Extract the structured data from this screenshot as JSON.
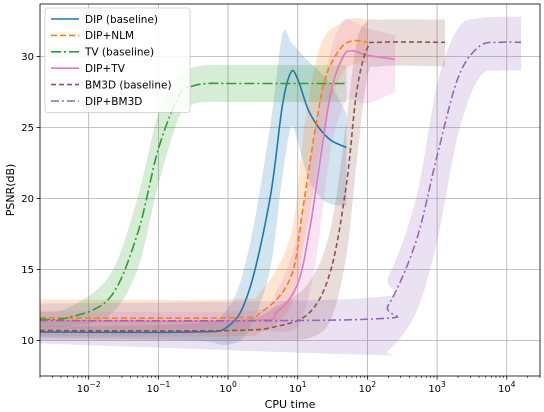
{
  "chart_data": {
    "type": "line",
    "xlabel": "CPU time",
    "ylabel": "PSNR(dB)",
    "xscale": "log",
    "xlim": [
      0.002,
      30000
    ],
    "ylim": [
      7.5,
      33.7
    ],
    "x_ticks": [
      {
        "value": 0.01,
        "base": "10",
        "exp": "−2"
      },
      {
        "value": 0.1,
        "base": "10",
        "exp": "−1"
      },
      {
        "value": 1,
        "base": "10",
        "exp": "0"
      },
      {
        "value": 10,
        "base": "10",
        "exp": "1"
      },
      {
        "value": 100,
        "base": "10",
        "exp": "2"
      },
      {
        "value": 1000,
        "base": "10",
        "exp": "3"
      },
      {
        "value": 10000,
        "base": "10",
        "exp": "4"
      }
    ],
    "y_ticks": [
      10,
      15,
      20,
      25,
      30
    ],
    "grid": true,
    "legend_position": "top-left",
    "series": [
      {
        "name": "DIP (baseline)",
        "color": "#1f77b4",
        "dash": "solid",
        "points": [
          [
            0.002,
            10.6
          ],
          [
            0.3,
            10.6
          ],
          [
            1,
            11.0
          ],
          [
            2,
            13.5
          ],
          [
            4,
            20.0
          ],
          [
            6,
            26.5
          ],
          [
            8,
            28.9
          ],
          [
            10,
            28.4
          ],
          [
            14,
            26.3
          ],
          [
            20,
            25.0
          ],
          [
            30,
            24.1
          ],
          [
            50,
            23.6
          ]
        ],
        "band": [
          [
            0.002,
            10.2,
            11.0
          ],
          [
            0.3,
            10.0,
            11.2
          ],
          [
            1,
            9.7,
            12.3
          ],
          [
            2,
            10.8,
            16.5
          ],
          [
            4,
            15.0,
            25.0
          ],
          [
            6,
            21.5,
            31.5
          ],
          [
            8,
            25.0,
            31.0
          ],
          [
            10,
            24.0,
            30.5
          ],
          [
            14,
            21.5,
            29.7
          ],
          [
            20,
            20.2,
            29.0
          ],
          [
            30,
            19.6,
            28.0
          ],
          [
            50,
            19.5,
            26.0
          ]
        ]
      },
      {
        "name": "DIP+NLM",
        "color": "#ff7f0e",
        "dash": "6,3",
        "points": [
          [
            0.002,
            11.6
          ],
          [
            1,
            11.6
          ],
          [
            3,
            12.0
          ],
          [
            8,
            14.5
          ],
          [
            12,
            19.5
          ],
          [
            18,
            25.0
          ],
          [
            25,
            28.5
          ],
          [
            40,
            30.5
          ],
          [
            60,
            31.1
          ],
          [
            100,
            31.0
          ]
        ],
        "band": [
          [
            0.002,
            10.3,
            12.9
          ],
          [
            1,
            10.3,
            12.9
          ],
          [
            3,
            10.6,
            13.5
          ],
          [
            8,
            12.4,
            17.5
          ],
          [
            12,
            16.5,
            24.5
          ],
          [
            18,
            21.5,
            29.5
          ],
          [
            25,
            25.5,
            31.5
          ],
          [
            40,
            28.5,
            32.3
          ],
          [
            60,
            29.4,
            32.7
          ],
          [
            100,
            29.6,
            32.6
          ]
        ]
      },
      {
        "name": "TV (baseline)",
        "color": "#2ca02c",
        "dash": "10,3,2,3",
        "points": [
          [
            0.002,
            11.5
          ],
          [
            0.005,
            11.6
          ],
          [
            0.02,
            13.0
          ],
          [
            0.05,
            17.5
          ],
          [
            0.1,
            23.5
          ],
          [
            0.2,
            27.3
          ],
          [
            0.3,
            27.9
          ],
          [
            0.5,
            28.1
          ],
          [
            1,
            28.1
          ],
          [
            10,
            28.1
          ],
          [
            50,
            28.1
          ]
        ],
        "band": [
          [
            0.002,
            11.0,
            12.0
          ],
          [
            0.005,
            11.0,
            12.3
          ],
          [
            0.02,
            11.8,
            14.6
          ],
          [
            0.05,
            15.0,
            20.0
          ],
          [
            0.1,
            21.0,
            26.0
          ],
          [
            0.2,
            25.8,
            28.8
          ],
          [
            0.3,
            26.6,
            29.2
          ],
          [
            0.5,
            26.8,
            29.4
          ],
          [
            1,
            26.8,
            29.4
          ],
          [
            10,
            26.8,
            29.4
          ],
          [
            50,
            26.8,
            29.4
          ]
        ]
      },
      {
        "name": "DIP+TV",
        "color": "#e377c2",
        "dash": "solid",
        "points": [
          [
            0.002,
            11.4
          ],
          [
            2,
            11.4
          ],
          [
            5,
            12.0
          ],
          [
            10,
            14.0
          ],
          [
            15,
            18.0
          ],
          [
            20,
            22.0
          ],
          [
            30,
            27.5
          ],
          [
            45,
            30.0
          ],
          [
            60,
            30.4
          ],
          [
            100,
            30.1
          ],
          [
            250,
            29.8
          ]
        ],
        "band": [
          [
            0.002,
            10.7,
            12.1
          ],
          [
            2,
            10.7,
            12.1
          ],
          [
            5,
            10.6,
            13.5
          ],
          [
            10,
            11.0,
            17.5
          ],
          [
            15,
            13.5,
            22.5
          ],
          [
            20,
            17.0,
            26.5
          ],
          [
            30,
            23.5,
            30.5
          ],
          [
            45,
            26.5,
            32.5
          ],
          [
            60,
            27.0,
            32.5
          ],
          [
            100,
            26.7,
            32.0
          ],
          [
            250,
            27.5,
            31.5
          ]
        ]
      },
      {
        "name": "BM3D (baseline)",
        "color": "#8c564b",
        "dash": "5,3",
        "points": [
          [
            0.002,
            10.7
          ],
          [
            1,
            10.7
          ],
          [
            5,
            11.0
          ],
          [
            15,
            12.0
          ],
          [
            30,
            15.0
          ],
          [
            50,
            21.0
          ],
          [
            70,
            27.5
          ],
          [
            100,
            30.6
          ],
          [
            150,
            31.0
          ],
          [
            1300,
            31.0
          ]
        ],
        "band": [
          [
            0.002,
            10.0,
            11.4
          ],
          [
            1,
            10.0,
            11.4
          ],
          [
            5,
            10.0,
            12.4
          ],
          [
            15,
            10.2,
            14.2
          ],
          [
            30,
            11.5,
            18.0
          ],
          [
            50,
            16.0,
            25.5
          ],
          [
            70,
            22.5,
            31.0
          ],
          [
            100,
            28.5,
            32.5
          ],
          [
            150,
            29.3,
            32.6
          ],
          [
            1300,
            29.3,
            32.6
          ]
        ]
      },
      {
        "name": "DIP+BM3D",
        "color": "#9467bd",
        "dash": "8,3,2,3",
        "points": [
          [
            0.002,
            11.4
          ],
          [
            100,
            11.5
          ],
          [
            200,
            12.5
          ],
          [
            500,
            17.0
          ],
          [
            1000,
            23.0
          ],
          [
            2000,
            28.5
          ],
          [
            4000,
            30.7
          ],
          [
            8000,
            31.0
          ],
          [
            16000,
            31.0
          ]
        ],
        "band": [
          [
            0.002,
            9.8,
            12.6
          ],
          [
            100,
            9.0,
            13.0
          ],
          [
            200,
            9.3,
            14.5
          ],
          [
            500,
            12.0,
            20.0
          ],
          [
            1000,
            17.0,
            28.0
          ],
          [
            2000,
            24.5,
            32.0
          ],
          [
            4000,
            28.5,
            32.7
          ],
          [
            8000,
            29.0,
            32.8
          ],
          [
            16000,
            29.0,
            32.8
          ]
        ]
      }
    ]
  }
}
